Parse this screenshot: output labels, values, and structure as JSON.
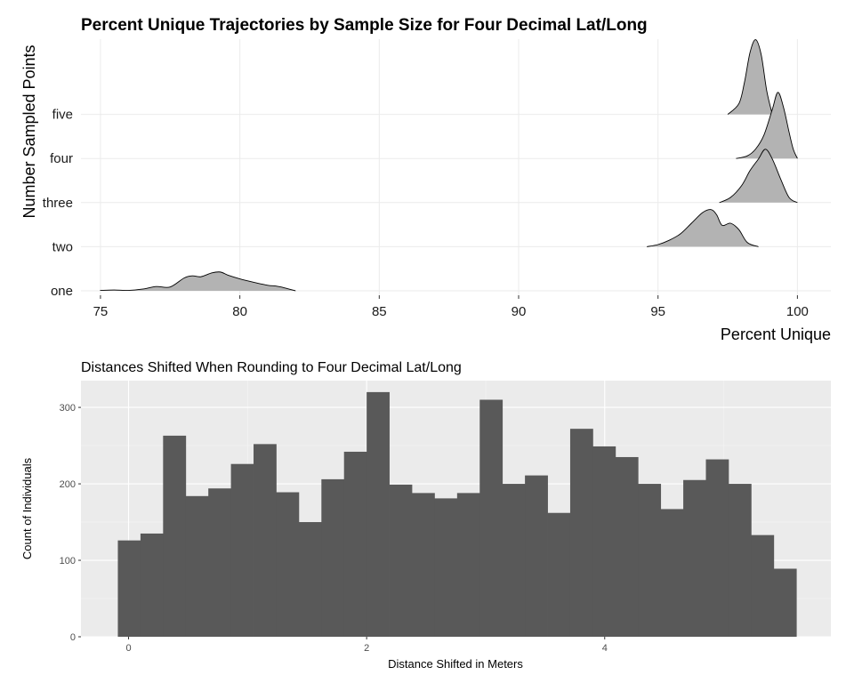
{
  "chart_data": [
    {
      "type": "area",
      "subtype": "ridgeline",
      "title": "Percent Unique Trajectories by Sample Size for Four Decimal Lat/Long",
      "xlabel": "Percent Unique",
      "ylabel": "Number Sampled Points",
      "xlim": [
        74.3,
        101.2
      ],
      "xticks": [
        75,
        80,
        85,
        90,
        95,
        100
      ],
      "grid": true,
      "categories": [
        "one",
        "two",
        "three",
        "four",
        "five"
      ],
      "fill": "#b3b3b3",
      "series": [
        {
          "name": "one",
          "x": [
            75.0,
            75.5,
            76.0,
            76.5,
            77.0,
            77.5,
            78.0,
            78.3,
            78.6,
            79.0,
            79.3,
            79.6,
            80.0,
            80.5,
            81.0,
            81.3,
            81.6,
            82.0
          ],
          "density": [
            0.01,
            0.02,
            0.01,
            0.04,
            0.1,
            0.09,
            0.3,
            0.35,
            0.33,
            0.42,
            0.44,
            0.36,
            0.28,
            0.2,
            0.13,
            0.11,
            0.07,
            0.0
          ]
        },
        {
          "name": "two",
          "x": [
            94.6,
            95.0,
            95.4,
            95.8,
            96.2,
            96.6,
            96.9,
            97.1,
            97.3,
            97.6,
            97.9,
            98.2,
            98.6
          ],
          "density": [
            0.0,
            0.05,
            0.15,
            0.3,
            0.55,
            0.8,
            0.87,
            0.75,
            0.5,
            0.55,
            0.4,
            0.1,
            0.0
          ]
        },
        {
          "name": "three",
          "x": [
            97.2,
            97.6,
            98.0,
            98.3,
            98.6,
            98.85,
            99.1,
            99.4,
            99.7,
            100.0
          ],
          "density": [
            0.0,
            0.12,
            0.4,
            0.75,
            1.02,
            1.25,
            1.02,
            0.55,
            0.12,
            0.0
          ]
        },
        {
          "name": "four",
          "x": [
            97.8,
            98.2,
            98.5,
            98.8,
            99.1,
            99.3,
            99.5,
            99.7,
            99.85,
            100.0
          ],
          "density": [
            0.0,
            0.06,
            0.22,
            0.55,
            1.15,
            1.55,
            1.2,
            0.62,
            0.22,
            0.0
          ]
        },
        {
          "name": "five",
          "x": [
            97.5,
            97.9,
            98.1,
            98.3,
            98.5,
            98.7,
            98.9,
            99.1
          ],
          "density": [
            0.0,
            0.25,
            0.75,
            1.45,
            1.75,
            1.4,
            0.55,
            0.0
          ]
        }
      ]
    },
    {
      "type": "bar",
      "subtype": "histogram",
      "title": "Distances Shifted When Rounding to Four Decimal Lat/Long",
      "xlabel": "Distance Shifted in Meters",
      "ylabel": "Count of Individuals",
      "xlim": [
        -0.4,
        5.9
      ],
      "ylim": [
        0,
        335
      ],
      "xticks": [
        0,
        2,
        4
      ],
      "yticks": [
        0,
        100,
        200,
        300
      ],
      "grid": true,
      "fill": "#595959",
      "bin_width": 0.19,
      "bin_starts": [
        -0.09,
        0.1,
        0.29,
        0.48,
        0.67,
        0.86,
        1.05,
        1.24,
        1.43,
        1.62,
        1.81,
        2.0,
        2.19,
        2.38,
        2.57,
        2.76,
        2.95,
        3.14,
        3.33,
        3.52,
        3.71,
        3.9,
        4.09,
        4.28,
        4.47,
        4.66,
        4.85,
        5.04,
        5.23,
        5.42
      ],
      "values": [
        126,
        135,
        263,
        184,
        194,
        226,
        252,
        189,
        150,
        206,
        242,
        320,
        199,
        188,
        181,
        188,
        310,
        200,
        211,
        162,
        272,
        249,
        235,
        200,
        167,
        205,
        232,
        200,
        133,
        89
      ]
    }
  ]
}
